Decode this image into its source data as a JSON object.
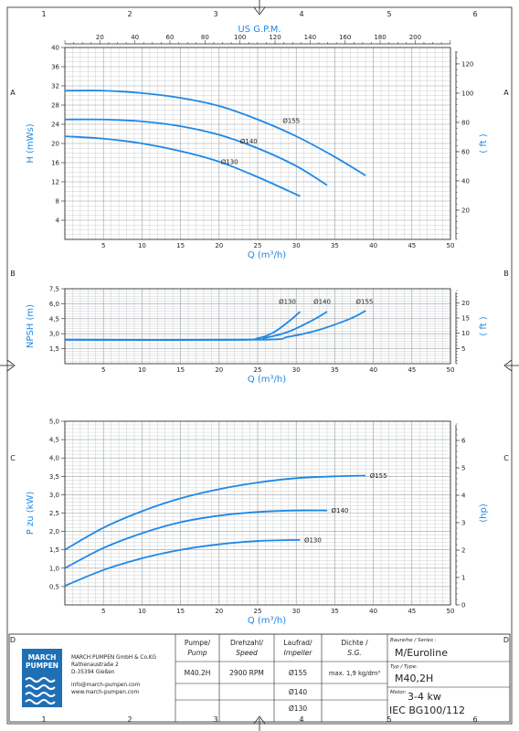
{
  "frame": {
    "columns": [
      "1",
      "2",
      "3",
      "4",
      "5",
      "6"
    ],
    "rows": [
      "A",
      "B",
      "C",
      "D"
    ]
  },
  "top_axis": {
    "label": "US G.P.M.",
    "ticks": [
      20,
      40,
      60,
      80,
      100,
      120,
      140,
      160,
      180,
      200
    ]
  },
  "colors": {
    "curve": "#1e88e5",
    "grid": "#9aa0a6",
    "frame": "#222222",
    "logo": "#1f6fb5"
  },
  "chart_data": [
    {
      "type": "line",
      "ylabel": "H (mWs)",
      "y2label": "( ft )",
      "xlabel": "Q (m³/h)",
      "xlim": [
        0,
        50
      ],
      "ylim": [
        0,
        40
      ],
      "y2lim": [
        0,
        131.2
      ],
      "xticks": [
        5,
        10,
        15,
        20,
        25,
        30,
        35,
        40,
        45,
        50
      ],
      "yticks": [
        4,
        8,
        12,
        16,
        20,
        24,
        28,
        32,
        36,
        40
      ],
      "y2ticks": [
        20,
        40,
        60,
        80,
        100,
        120
      ],
      "grid": true,
      "series": [
        {
          "name": "Ø155",
          "x": [
            0,
            5,
            10,
            15,
            20,
            25,
            30,
            35,
            39
          ],
          "y": [
            31,
            31,
            30.5,
            29.5,
            27.8,
            25,
            21.5,
            17.2,
            13.3
          ],
          "label_at": [
            28,
            24.8
          ]
        },
        {
          "name": "Ø140",
          "x": [
            0,
            5,
            10,
            15,
            20,
            25,
            30,
            34
          ],
          "y": [
            25,
            25,
            24.6,
            23.6,
            21.8,
            19,
            15.3,
            11.3
          ],
          "label_at": [
            22.5,
            20.5
          ]
        },
        {
          "name": "Ø130",
          "x": [
            0,
            5,
            10,
            15,
            20,
            25,
            30.5
          ],
          "y": [
            21.5,
            21,
            20,
            18.4,
            16.2,
            13,
            9
          ],
          "label_at": [
            20,
            16.2
          ]
        }
      ]
    },
    {
      "type": "line",
      "ylabel": "NPSH (m)",
      "y2label": "( ft )",
      "xlabel": "Q (m³/h)",
      "xlim": [
        0,
        50
      ],
      "ylim": [
        0,
        7.5
      ],
      "y2lim": [
        0,
        24.6
      ],
      "xticks": [
        5,
        10,
        15,
        20,
        25,
        30,
        35,
        40,
        45,
        50
      ],
      "yticks": [
        "1,5",
        "3,0",
        "4,5",
        "6,0",
        "7,5"
      ],
      "yticks_values": [
        1.5,
        3.0,
        4.5,
        6.0,
        7.5
      ],
      "y2ticks": [
        5,
        10,
        15,
        20
      ],
      "grid": true,
      "series": [
        {
          "name": "Ø130",
          "x": [
            0,
            22,
            25,
            27,
            29,
            30.5
          ],
          "y": [
            2.4,
            2.4,
            2.55,
            3.1,
            4.2,
            5.2
          ],
          "label_at": [
            27.5,
            6.2
          ]
        },
        {
          "name": "Ø140",
          "x": [
            0,
            23,
            26,
            29,
            32,
            34
          ],
          "y": [
            2.4,
            2.4,
            2.6,
            3.2,
            4.3,
            5.2
          ],
          "label_at": [
            32,
            6.2
          ]
        },
        {
          "name": "Ø155",
          "x": [
            0,
            25,
            29,
            33,
            37,
            39
          ],
          "y": [
            2.4,
            2.4,
            2.7,
            3.4,
            4.5,
            5.3
          ],
          "label_at": [
            37.5,
            6.2
          ]
        }
      ]
    },
    {
      "type": "line",
      "ylabel": "P zu (kW)",
      "y2label": "(hp)",
      "xlabel": "Q (m³/h)",
      "xlim": [
        0,
        50
      ],
      "ylim": [
        0,
        5.0
      ],
      "y2lim": [
        0,
        6.7
      ],
      "xticks": [
        5,
        10,
        15,
        20,
        25,
        30,
        35,
        40,
        45,
        50
      ],
      "yticks": [
        "0,5",
        "1,0",
        "1,5",
        "2,0",
        "2,5",
        "3,0",
        "3,5",
        "4,0",
        "4,5",
        "5,0"
      ],
      "yticks_values": [
        0.5,
        1.0,
        1.5,
        2.0,
        2.5,
        3.0,
        3.5,
        4.0,
        4.5,
        5.0
      ],
      "y2ticks": [
        "0",
        "1",
        "2",
        "3",
        "4",
        "5",
        "6"
      ],
      "y2ticks_values": [
        0,
        1,
        2,
        3,
        4,
        5,
        6
      ],
      "grid": true,
      "series": [
        {
          "name": "Ø155",
          "x": [
            0,
            5,
            10,
            15,
            20,
            25,
            30,
            35,
            39
          ],
          "y": [
            1.5,
            2.1,
            2.55,
            2.9,
            3.15,
            3.33,
            3.45,
            3.5,
            3.52
          ],
          "label_at": [
            39.3,
            3.52
          ]
        },
        {
          "name": "Ø140",
          "x": [
            0,
            5,
            10,
            15,
            20,
            25,
            30,
            34
          ],
          "y": [
            1.0,
            1.55,
            1.95,
            2.25,
            2.43,
            2.53,
            2.57,
            2.57
          ],
          "label_at": [
            34.3,
            2.57
          ]
        },
        {
          "name": "Ø130",
          "x": [
            0,
            5,
            10,
            15,
            20,
            25,
            30.5
          ],
          "y": [
            0.52,
            0.95,
            1.27,
            1.5,
            1.65,
            1.74,
            1.77
          ],
          "label_at": [
            30.8,
            1.77
          ]
        }
      ]
    }
  ],
  "title_block": {
    "company": {
      "logo_line1": "MARCH",
      "logo_line2": "PUMPEN",
      "name": "MARCH PUMPEN GmbH & Co.KG",
      "street": "Rathenaustraße 2",
      "city": "D-35394 Gießen",
      "email": "info@march-pumpen.com",
      "web": "www.march-pumpen.com"
    },
    "headers": {
      "pump": "Pumpe/",
      "pump_en": "Pump",
      "speed": "Drehzahl/",
      "speed_en": "Speed",
      "impeller": "Laufrad/",
      "impeller_en": "Impeller",
      "density": "Dichte /",
      "density_en": "S.G."
    },
    "values": {
      "pump": "M40.2H",
      "speed": "2900 RPM",
      "impellers": [
        "Ø155",
        "Ø140",
        "Ø130"
      ],
      "density": "max. 1,9 kg/dm³"
    },
    "right": {
      "series_label": "Baureihe / Series :",
      "series_value": "M/Euroline",
      "type_label": "Typ / Type:",
      "type_value": "M40,2H",
      "motor_label": "Motor:",
      "motor_value": "3-4 kw",
      "iec_value": "IEC BG100/112"
    }
  }
}
